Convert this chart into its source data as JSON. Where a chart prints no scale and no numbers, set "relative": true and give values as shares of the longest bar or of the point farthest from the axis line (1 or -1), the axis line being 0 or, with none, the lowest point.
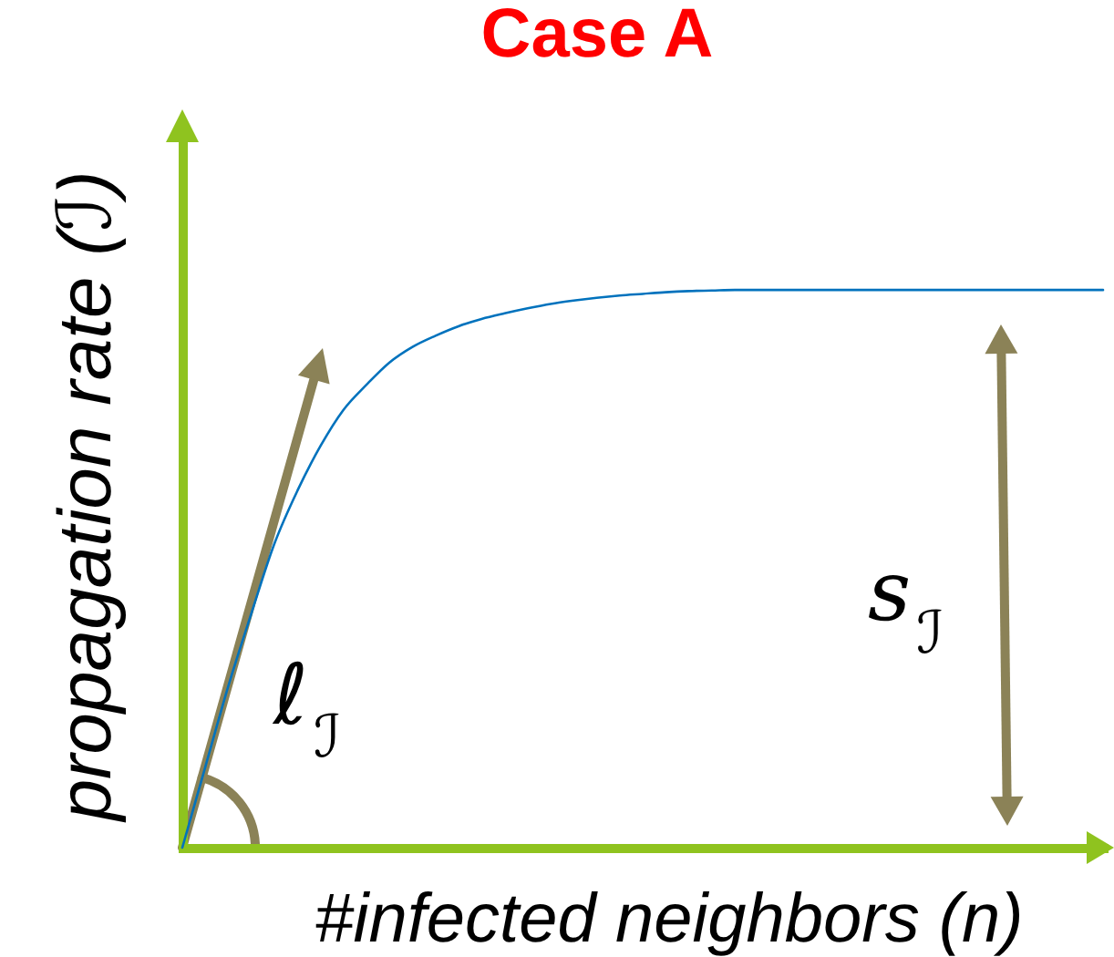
{
  "chart_data": {
    "type": "line",
    "title": "Case A",
    "xlabel": "#infected neighbors (n)",
    "ylabel": "propagation rate (ℐ)",
    "relative": true,
    "categories": [
      null,
      null,
      null,
      null,
      null,
      null,
      null,
      null,
      null,
      null,
      null,
      null,
      null,
      null,
      null,
      null,
      null,
      null,
      null,
      null,
      null,
      null,
      null,
      null,
      null,
      null,
      null,
      null,
      null,
      null,
      null,
      null,
      null,
      null,
      null,
      null,
      null,
      null,
      null,
      null,
      null
    ],
    "series": [
      {
        "color": "#0072bd",
        "values": [
          0,
          0.145,
          0.29,
          0.42,
          0.545,
          0.64,
          0.72,
          0.785,
          0.83,
          0.87,
          0.898,
          0.918,
          0.935,
          0.948,
          0.958,
          0.967,
          0.975,
          0.981,
          0.986,
          0.99,
          0.993,
          0.996,
          0.998,
          0.999,
          1,
          1,
          1,
          1,
          1,
          1,
          1,
          1,
          1,
          1,
          1,
          1,
          1,
          1,
          1,
          1,
          1
        ]
      }
    ],
    "annotations": [
      "ℓ$_{ℐ}$",
      "s$_{ℐ}$"
    ]
  }
}
